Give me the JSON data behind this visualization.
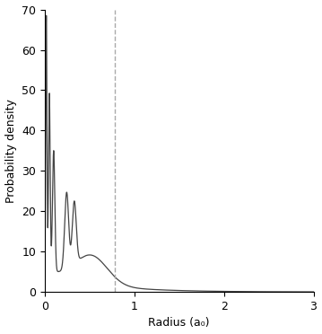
{
  "title": "",
  "xlabel": "Radius (a₀)",
  "ylabel": "Probability density",
  "xlim": [
    0,
    3
  ],
  "ylim": [
    0,
    70
  ],
  "xticks": [
    0,
    1,
    2,
    3
  ],
  "yticks": [
    0,
    10,
    20,
    30,
    40,
    50,
    60,
    70
  ],
  "dashed_vline_x": 0.78,
  "dashed_vline_color": "#aaaaaa",
  "line_color": "#444444",
  "background_color": "#ffffff",
  "figsize": [
    3.59,
    3.72
  ],
  "dpi": 100
}
